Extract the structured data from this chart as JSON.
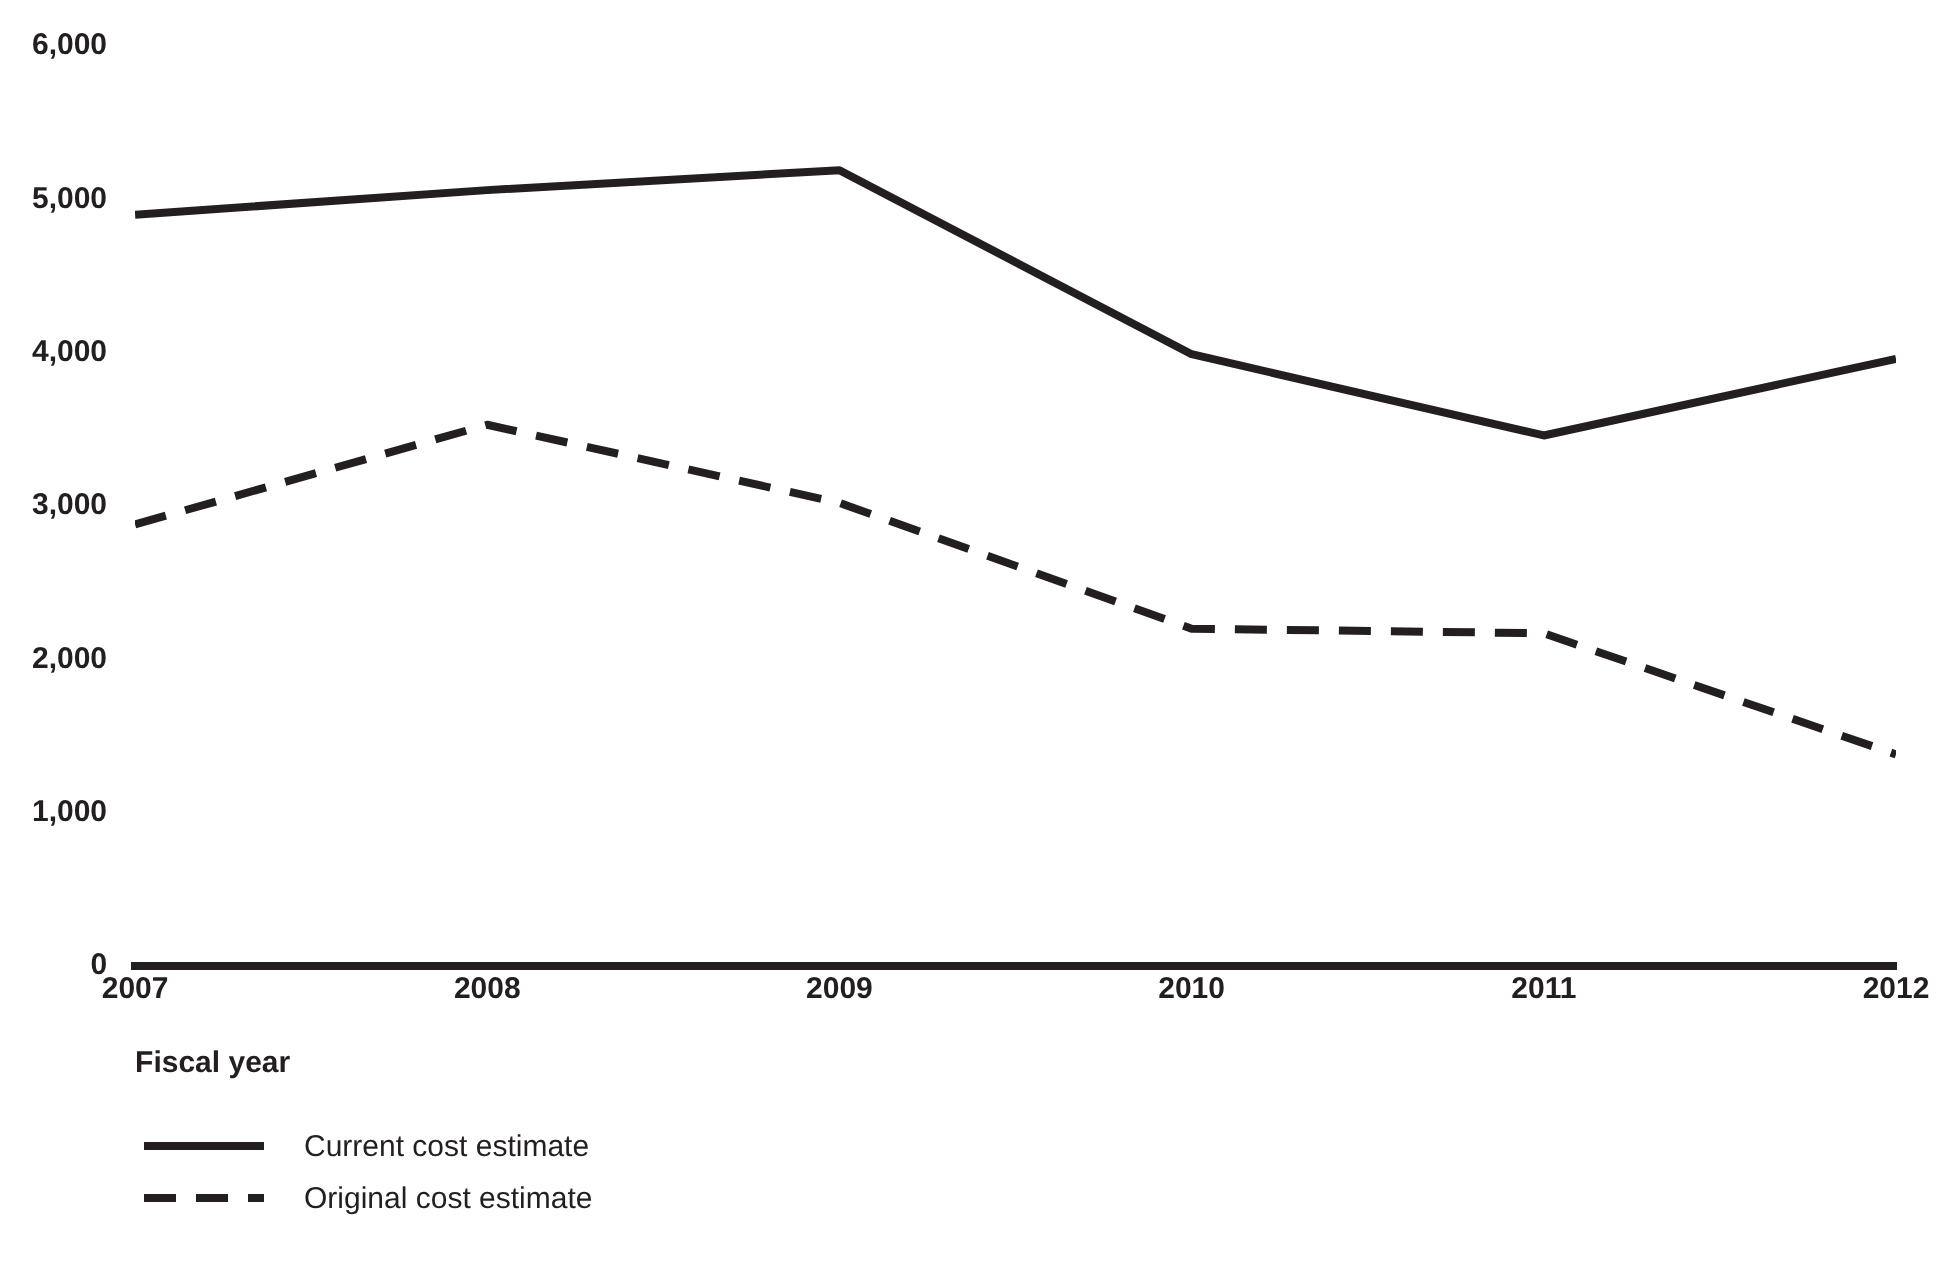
{
  "chart_data": {
    "type": "line",
    "xlabel": "Fiscal year",
    "x": [
      2007,
      2008,
      2009,
      2010,
      2011,
      2012
    ],
    "series": [
      {
        "name": "Current cost estimate",
        "color": "#231f20",
        "line_style": "solid",
        "values": [
          4900,
          5060,
          5190,
          3990,
          3460,
          3960
        ]
      },
      {
        "name": "Original cost estimate",
        "color": "#231f20",
        "line_style": "dashed",
        "values": [
          2880,
          3530,
          3020,
          2200,
          2170,
          1380
        ]
      }
    ],
    "xlim": [
      2007,
      2012
    ],
    "xticks": [
      2007,
      2008,
      2009,
      2010,
      2011,
      2012
    ],
    "ylim": [
      0,
      6000
    ],
    "yticks": [
      {
        "value": 0,
        "label": "0"
      },
      {
        "value": 1000,
        "label": "1,000"
      },
      {
        "value": 2000,
        "label": "2,000"
      },
      {
        "value": 3000,
        "label": "3,000"
      },
      {
        "value": 4000,
        "label": "4,000"
      },
      {
        "value": 5000,
        "label": "5,000"
      },
      {
        "value": 6000,
        "label": "6,000"
      }
    ],
    "grid": false,
    "legend": "bottom left",
    "marker": "none"
  }
}
